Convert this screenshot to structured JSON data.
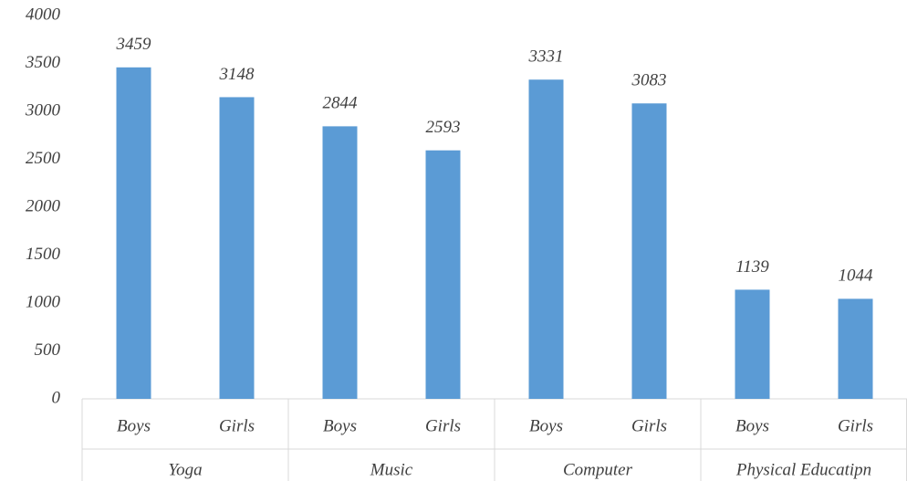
{
  "chart_data": {
    "type": "bar",
    "categories": [
      "Boys",
      "Girls",
      "Boys",
      "Girls",
      "Boys",
      "Girls",
      "Boys",
      "Girls"
    ],
    "groups": [
      "Yoga",
      "Music",
      "Computer",
      "Physical Educatipn"
    ],
    "values": [
      3459,
      3148,
      2844,
      2593,
      3331,
      3083,
      1139,
      1044
    ],
    "color": "#5b9bd5",
    "ylim": [
      0,
      4000
    ],
    "yticks": [
      0,
      500,
      1000,
      1500,
      2000,
      2500,
      3000,
      3500,
      4000
    ],
    "grid": false,
    "data_labels": true
  }
}
